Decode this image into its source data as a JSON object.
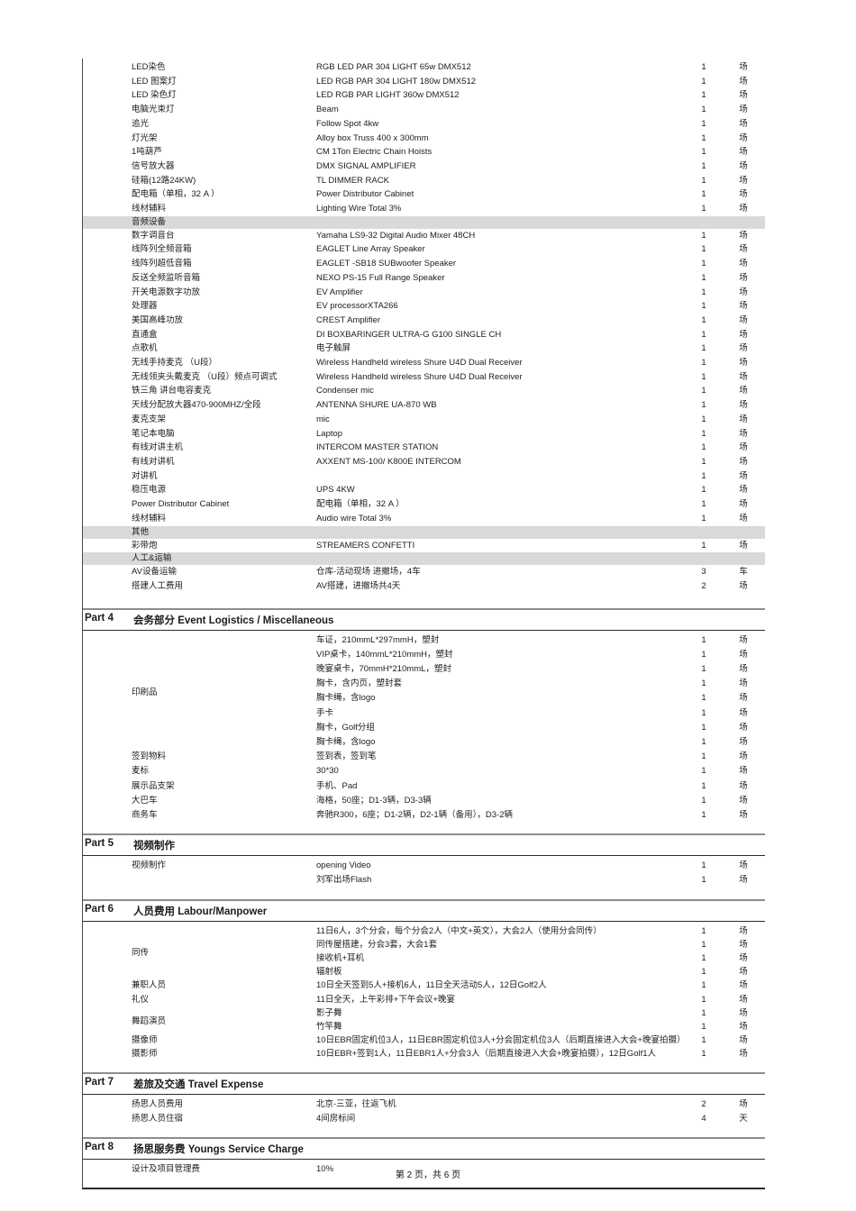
{
  "page_footer": "第 2 页，共 6 页",
  "colors": {
    "band_bg": "#d9d9d9",
    "separator": "#8c8c8c",
    "text": "#1c1c1c"
  },
  "table": {
    "blocks": [
      {
        "kind": "rows",
        "rows": [
          [
            "LED染色",
            "RGB LED PAR 304 LIGHT 65w DMX512",
            "1",
            "场"
          ],
          [
            "LED 图案灯",
            "LED RGB PAR 304 LIGHT 180w DMX512",
            "1",
            "场"
          ],
          [
            "LED 染色灯",
            "LED RGB PAR  LIGHT 360w DMX512",
            "1",
            "场"
          ],
          [
            "电脑光束灯",
            "Beam",
            "1",
            "场"
          ],
          [
            "追光",
            "Follow Spot 4kw",
            "1",
            "场"
          ],
          [
            "灯光架",
            "Alloy box Truss 400 x 300mm",
            "1",
            "场"
          ],
          [
            "1吨葫芦",
            "CM 1Ton Electric Chain Hoists",
            "1",
            "场"
          ],
          [
            "信号放大器",
            "DMX SIGNAL AMPLIFIER",
            "1",
            "场"
          ],
          [
            "硅箱(12路24KW)",
            "TL DIMMER RACK",
            "1",
            "场"
          ],
          [
            "配电箱（单相，32 A ）",
            "Power Distributor Cabinet",
            "1",
            "场"
          ],
          [
            "线材辅料",
            "Lighting Wire Total 3%",
            "1",
            "场"
          ]
        ]
      },
      {
        "kind": "band",
        "label": "音频设备"
      },
      {
        "kind": "rows",
        "rows": [
          [
            "数字调音台",
            "Yamaha LS9-32 Digital Audio Mixer 48CH",
            "1",
            "场"
          ],
          [
            "线阵列全频音箱",
            "EAGLET  Line Array Speaker",
            "1",
            "场"
          ],
          [
            "线阵列超低音箱",
            "EAGLET -SB18 SUBwoofer  Speaker",
            "1",
            "场"
          ],
          [
            "反送全频监听音箱",
            "NEXO PS-15 Full Range Speaker",
            "1",
            "场"
          ],
          [
            "开关电源数字功放",
            "EV  Amplifier",
            "1",
            "场"
          ],
          [
            "处理器",
            "EV processorXTA266",
            "1",
            "场"
          ],
          [
            "美国高峰功放",
            "CREST Amplifier",
            "1",
            "场"
          ],
          [
            "直通盒",
            "DI BOXBARINGER ULTRA-G G100 SINGLE CH",
            "1",
            "场"
          ],
          [
            "点歌机",
            "电子触屏",
            "1",
            "场"
          ],
          [
            "无线手持麦克 （U段）",
            "Wireless Handheld wireless  Shure U4D  Dual Receiver",
            "1",
            "场"
          ],
          [
            "无线领夹头戴麦克 （U段）频点可调式",
            "Wireless Handheld wireless  Shure U4D  Dual Receiver",
            "1",
            "场"
          ],
          [
            "铁三角 讲台电容麦克",
            "Condenser mic",
            "1",
            "场"
          ],
          [
            "天线分配放大器470-900MHZ/全段",
            "ANTENNA SHURE UA-870 WB",
            "1",
            "场"
          ],
          [
            "麦克支架",
            "mic",
            "1",
            "场"
          ],
          [
            "笔记本电脑",
            "Laptop",
            "1",
            "场"
          ],
          [
            "有线对讲主机",
            "INTERCOM MASTER STATION",
            "1",
            "场"
          ],
          [
            "有线对讲机",
            "AXXENT MS-100/ K800E INTERCOM",
            "1",
            "场"
          ],
          [
            "对讲机",
            "",
            "1",
            "场"
          ],
          [
            "稳压电源",
            "UPS 4KW",
            "1",
            "场"
          ],
          [
            "Power Distributor Cabinet",
            "配电箱（单相，32 A ）",
            "1",
            "场"
          ],
          [
            "线材辅料",
            "Audio wire  Total 3%",
            "1",
            "场"
          ]
        ]
      },
      {
        "kind": "band",
        "label": "其他"
      },
      {
        "kind": "rows",
        "rows": [
          [
            "彩带炮",
            "STREAMERS CONFETTI",
            "1",
            "场"
          ]
        ]
      },
      {
        "kind": "band",
        "label": "人工&运输"
      },
      {
        "kind": "rows",
        "rows": [
          [
            "AV设备运输",
            "仓库-活动现场 进撤场，4车",
            "3",
            "车"
          ],
          [
            "搭建人工费用",
            "AV搭建，进撤场共4天",
            "2",
            "场"
          ]
        ]
      },
      {
        "kind": "part",
        "no": "Part 4",
        "title": "会务部分 Event Logistics / Miscellaneous",
        "content": [
          {
            "kind": "group",
            "item": "印刷品",
            "rows": [
              [
                "车证，210mmL*297mmH，塑封",
                "1",
                "场"
              ],
              [
                "VIP桌卡，140mmL*210mmH，塑封",
                "1",
                "场"
              ],
              [
                "晚宴桌卡，70mmH*210mmL，塑封",
                "1",
                "场"
              ],
              [
                "胸卡，含内页，塑封套",
                "1",
                "场"
              ],
              [
                "胸卡绳，含logo",
                "1",
                "场"
              ],
              [
                "手卡",
                "1",
                "场"
              ],
              [
                "胸卡，Golf分组",
                "1",
                "场"
              ],
              [
                "胸卡绳，含logo",
                "1",
                "场"
              ]
            ]
          },
          {
            "kind": "row",
            "item": "签到物料",
            "desc": "签到表，签到笔",
            "qty": "1",
            "unit": "场"
          },
          {
            "kind": "row",
            "item": "麦标",
            "desc": "30*30",
            "qty": "1",
            "unit": "场"
          },
          {
            "kind": "row",
            "item": "展示品支架",
            "desc": "手机、Pad",
            "qty": "1",
            "unit": "场"
          },
          {
            "kind": "row",
            "item": "大巴车",
            "desc": "海格，50座；D1-3辆，D3-3辆",
            "qty": "1",
            "unit": "场"
          },
          {
            "kind": "row",
            "item": "商务车",
            "desc": "奔驰R300，6座；D1-2辆，D2-1辆（备用），D3-2辆",
            "qty": "1",
            "unit": "场"
          }
        ]
      },
      {
        "kind": "part",
        "no": "Part 5",
        "title": "视频制作",
        "content": [
          {
            "kind": "row",
            "item": "视频制作",
            "desc": "opening Video",
            "qty": "1",
            "unit": "场"
          },
          {
            "kind": "row",
            "item": "",
            "desc": "刘军出场Flash",
            "qty": "1",
            "unit": "场"
          }
        ]
      },
      {
        "kind": "part",
        "no": "Part 6",
        "title": "人员费用 Labour/Manpower",
        "compact": true,
        "content": [
          {
            "kind": "group",
            "item": "同传",
            "rows": [
              [
                "11日6人，3个分会，每个分会2人（中文+英文），大会2人（使用分会同传）",
                "1",
                "场"
              ],
              [
                "同传屋搭建，分会3套，大会1套",
                "1",
                "场"
              ],
              [
                "接收机+耳机",
                "1",
                "场"
              ],
              [
                "辐射板",
                "1",
                "场"
              ]
            ]
          },
          {
            "kind": "row",
            "item": "兼职人员",
            "desc": "10日全天签到5人+接机6人，11日全天活动5人，12日Golf2人",
            "qty": "1",
            "unit": "场"
          },
          {
            "kind": "row",
            "item": "礼仪",
            "desc": "11日全天，上午彩排+下午会议+晚宴",
            "qty": "1",
            "unit": "场"
          },
          {
            "kind": "group",
            "item": "舞蹈演员",
            "rows": [
              [
                "影子舞",
                "1",
                "场"
              ],
              [
                "竹竿舞",
                "1",
                "场"
              ]
            ]
          },
          {
            "kind": "row",
            "item": "摄像师",
            "desc": "10日EBR固定机位3人，11日EBR固定机位3人+分会固定机位3人（后期直接进入大会+晚宴拍摄）",
            "qty": "1",
            "unit": "场"
          },
          {
            "kind": "row",
            "item": "摄影师",
            "desc": "10日EBR+签到1人，11日EBR1人+分会3人（后期直接进入大会+晚宴拍摄），12日Golf1人",
            "qty": "1",
            "unit": "场"
          }
        ]
      },
      {
        "kind": "part",
        "no": "Part 7",
        "title": "差旅及交通 Travel Expense",
        "content": [
          {
            "kind": "row",
            "item": "扬思人员费用",
            "desc": "北京-三亚，往返飞机",
            "qty": "2",
            "unit": "场"
          },
          {
            "kind": "row",
            "item": "扬思人员住宿",
            "desc": "4间房标间",
            "qty": "4",
            "unit": "天"
          }
        ]
      },
      {
        "kind": "part",
        "no": "Part 8",
        "title": "扬思服务费 Youngs Service Charge",
        "content": [
          {
            "kind": "row",
            "item": "设计及项目管理费",
            "desc": "10%",
            "qty": "",
            "unit": ""
          }
        ]
      }
    ]
  }
}
